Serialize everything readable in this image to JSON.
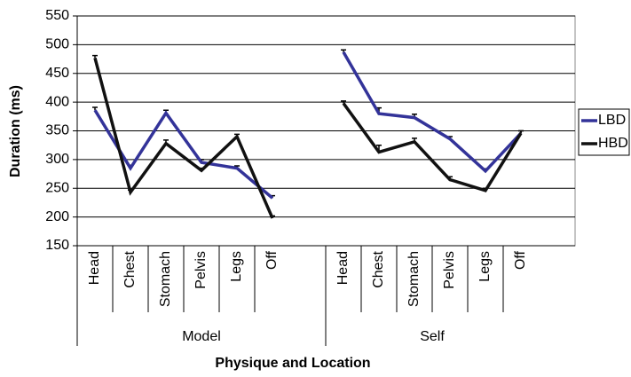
{
  "chart_data": {
    "type": "line",
    "ylabel": "Duration (ms)",
    "xlabel": "Physique and Location",
    "categories": [
      "Head",
      "Chest",
      "Stomach",
      "Pelvis",
      "Legs",
      "Off",
      null,
      "Head",
      "Chest",
      "Stomach",
      "Pelvis",
      "Legs",
      "Off"
    ],
    "groups": [
      "Model",
      "Self"
    ],
    "series": [
      {
        "name": "LBD",
        "color": "#333399",
        "values": [
          386,
          285,
          381,
          295,
          285,
          233,
          null,
          487,
          380,
          373,
          336,
          280,
          346
        ],
        "errors": [
          5,
          5,
          5,
          5,
          4,
          4,
          null,
          4,
          10,
          6,
          4,
          4,
          4
        ]
      },
      {
        "name": "HBD",
        "color": "#111111",
        "values": [
          477,
          243,
          328,
          281,
          340,
          198,
          null,
          398,
          313,
          331,
          265,
          246,
          346
        ],
        "errors": [
          4,
          4,
          6,
          4,
          4,
          4,
          null,
          4,
          12,
          6,
          5,
          4,
          4
        ]
      }
    ],
    "ylim": [
      150,
      550
    ],
    "yticks": [
      150,
      200,
      250,
      300,
      350,
      400,
      450,
      500,
      550
    ],
    "grid": true,
    "legend": "right"
  }
}
